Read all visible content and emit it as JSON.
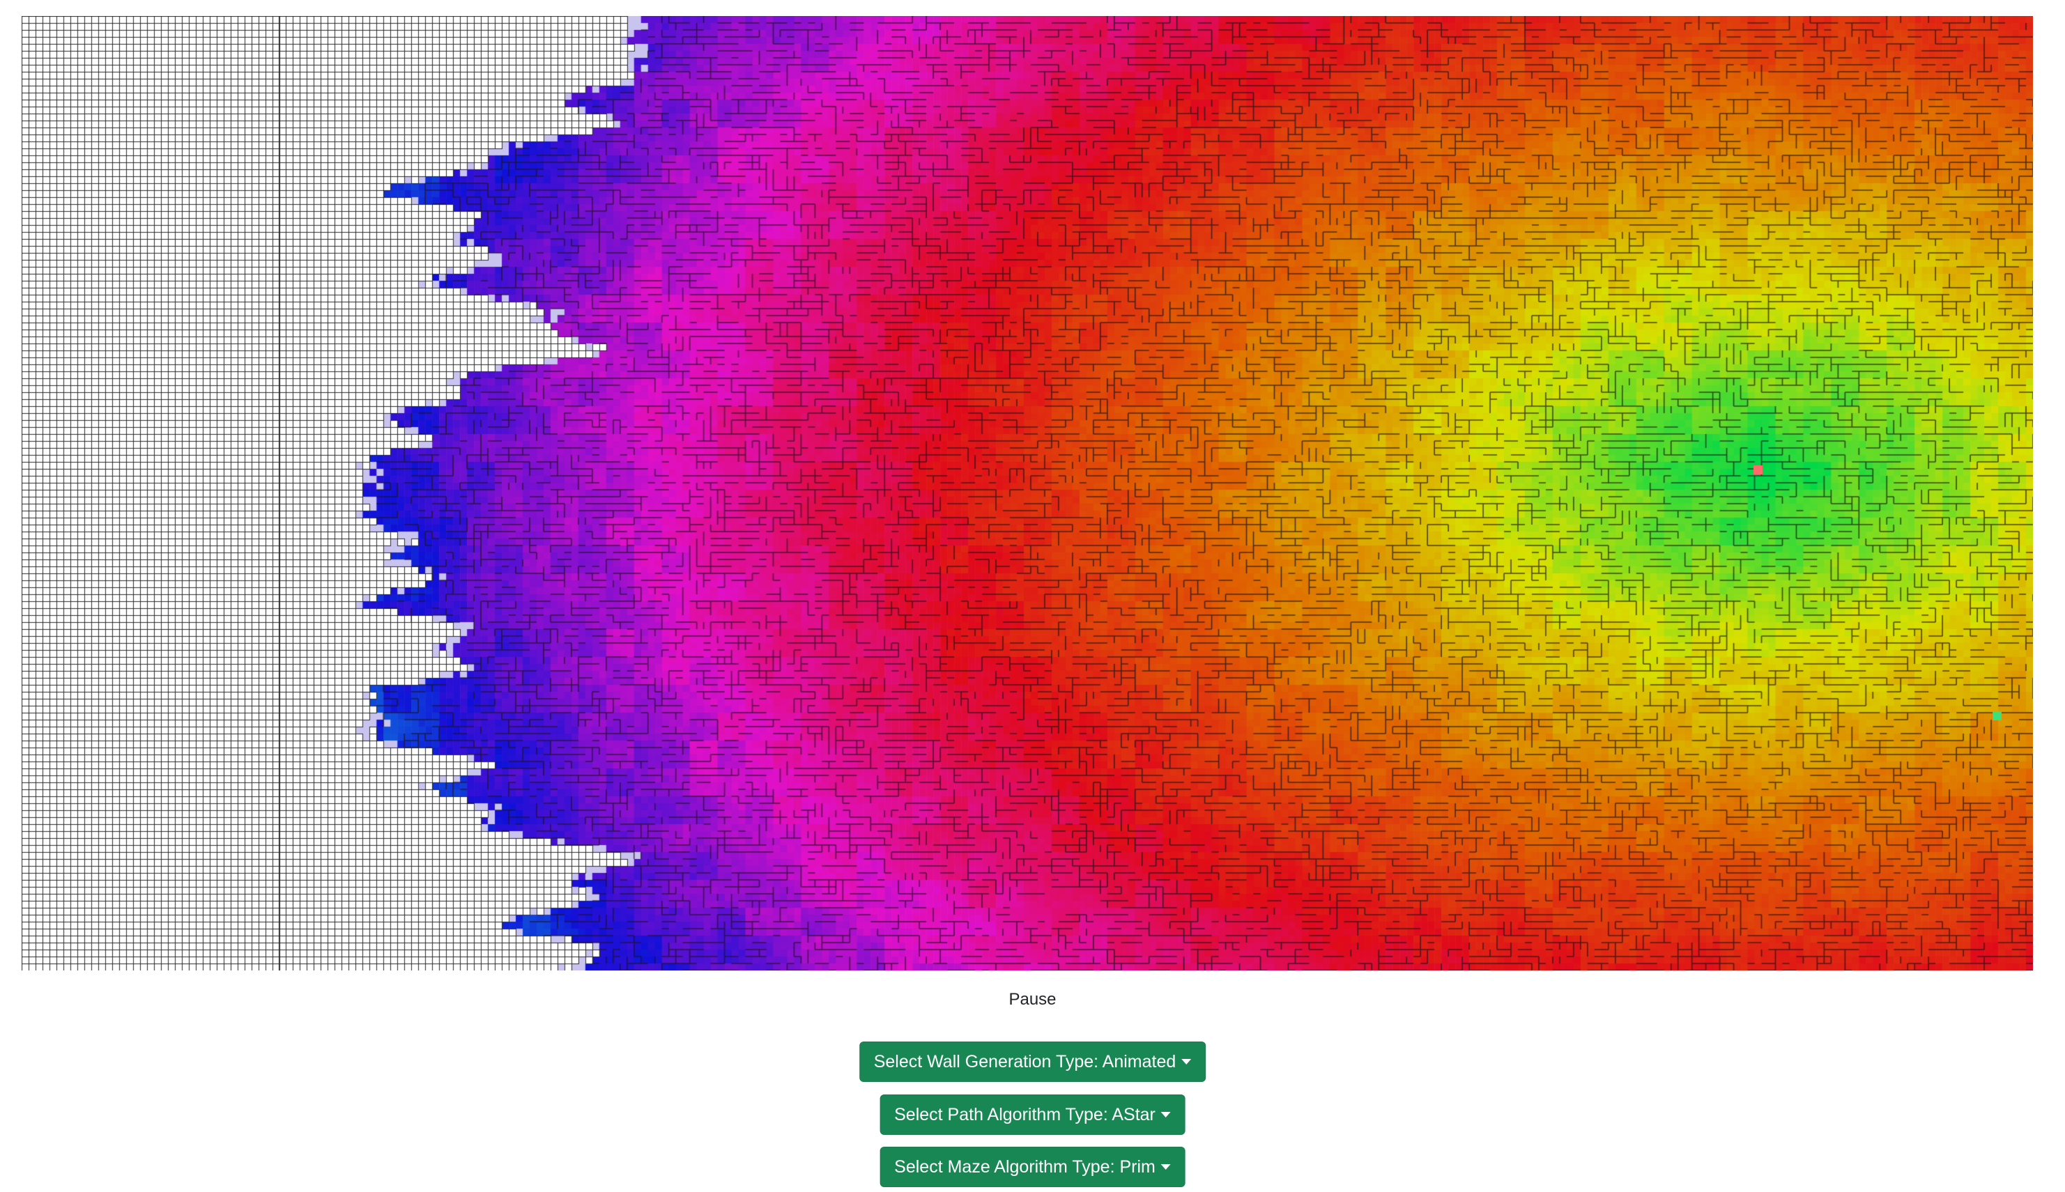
{
  "maze": {
    "cols": 289,
    "rows": 137,
    "wall_color": "#2a2a2a",
    "unvisited_color": "#ffffff",
    "frontier_color": "#c9c3f0",
    "gradient_stops": [
      "#00d84a",
      "#d8e000",
      "#e06a00",
      "#e00a1a",
      "#e010c8",
      "#1010d8",
      "#10c8e0"
    ],
    "start_marker_color": "#ff6b6b",
    "end_marker_color": "#3ce07a",
    "icons": {
      "maze": "maze-grid-icon",
      "start": "start-node-icon",
      "end": "end-node-icon"
    }
  },
  "controls": {
    "pause_label": "Pause",
    "wall_generation_label": "Select Wall Generation Type: Animated",
    "path_algorithm_label": "Select Path Algorithm Type: AStar",
    "maze_algorithm_label": "Select Maze Algorithm Type: Prim",
    "accent_color": "#198754"
  }
}
